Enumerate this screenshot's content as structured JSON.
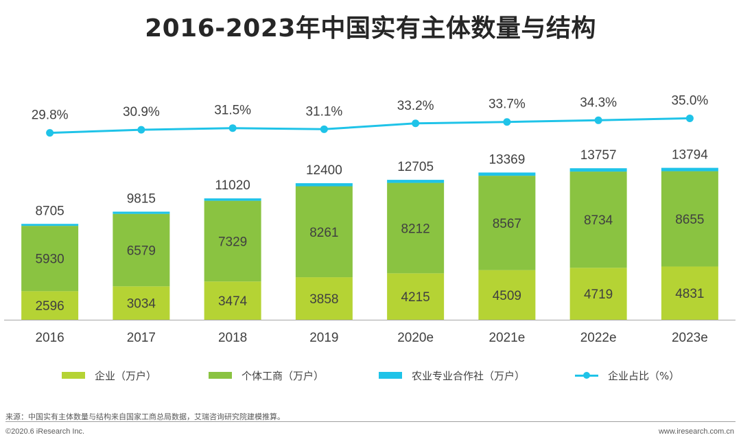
{
  "chart_data": {
    "type": "bar",
    "stacked": true,
    "title": "2016-2023年中国实有主体数量与结构",
    "categories": [
      "2016",
      "2017",
      "2018",
      "2019",
      "2020e",
      "2021e",
      "2022e",
      "2023e"
    ],
    "series": [
      {
        "name": "企业（万户）",
        "color": "#b5d334",
        "values": [
          2596,
          3034,
          3474,
          3858,
          4215,
          4509,
          4719,
          4831
        ]
      },
      {
        "name": "个体工商（万户）",
        "color": "#8ac341",
        "values": [
          5930,
          6579,
          7329,
          8261,
          8212,
          8567,
          8734,
          8655
        ]
      },
      {
        "name": "农业专业合作社（万户）",
        "color": "#1fc3e8",
        "values": [
          179,
          202,
          217,
          281,
          278,
          293,
          304,
          308
        ]
      }
    ],
    "totals": [
      8705,
      9815,
      11020,
      12400,
      12705,
      13369,
      13757,
      13794
    ],
    "line_series": {
      "name": "企业占比（%）",
      "color": "#1fc3e8",
      "values": [
        29.8,
        30.9,
        31.5,
        31.1,
        33.2,
        33.7,
        34.3,
        35.0
      ],
      "labels": [
        "29.8%",
        "30.9%",
        "31.5%",
        "31.1%",
        "33.2%",
        "33.7%",
        "34.3%",
        "35.0%"
      ]
    },
    "ylim": [
      0,
      16000
    ],
    "line_ylim": [
      20,
      40
    ],
    "grid": false,
    "legend_position": "bottom"
  },
  "footer": {
    "source": "来源：中国实有主体数量与结构来自国家工商总局数据，艾瑞咨询研究院建模推算。",
    "copyright": "©2020.6 iResearch Inc.",
    "website": "www.iresearch.com.cn"
  }
}
